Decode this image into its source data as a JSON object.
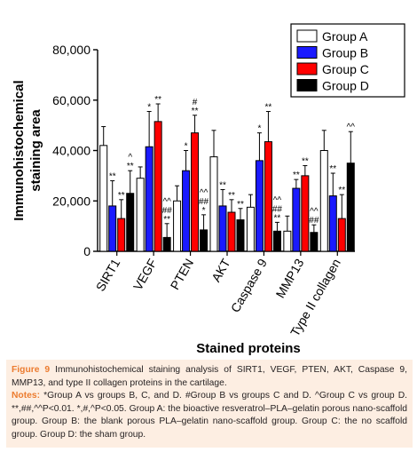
{
  "chart_data": {
    "type": "bar",
    "ylabel": "Immunohistochemical\nstaining area",
    "xlabel": "Stained proteins",
    "ylim": [
      0,
      80000
    ],
    "yticks": [
      "0",
      "20,000",
      "40,000",
      "60,000",
      "80,000"
    ],
    "ytick_values": [
      0,
      20000,
      40000,
      60000,
      80000
    ],
    "categories": [
      "SIRT1",
      "VEGF",
      "PTEN",
      "AKT",
      "Caspase 9",
      "MMP13",
      "Type II collagen"
    ],
    "series": [
      {
        "name": "Group A",
        "color": "#ffffff",
        "values": [
          42000,
          29000,
          20000,
          37500,
          17500,
          8000,
          40000
        ],
        "errors": [
          7500,
          4500,
          6000,
          10500,
          5000,
          6000,
          8000
        ]
      },
      {
        "name": "Group B",
        "color": "#1a1aff",
        "values": [
          18000,
          41500,
          32000,
          18000,
          36000,
          25000,
          22000
        ],
        "errors": [
          10000,
          14000,
          8000,
          6500,
          11000,
          3500,
          9000
        ]
      },
      {
        "name": "Group C",
        "color": "#ff0000",
        "values": [
          13000,
          51500,
          47000,
          15500,
          43500,
          30000,
          13000
        ],
        "errors": [
          7500,
          7000,
          7000,
          5000,
          12000,
          4000,
          9500
        ]
      },
      {
        "name": "Group D",
        "color": "#000000",
        "values": [
          23000,
          5500,
          8500,
          12500,
          8000,
          7500,
          35000
        ],
        "errors": [
          9000,
          5500,
          6000,
          4500,
          3500,
          3000,
          12500
        ]
      }
    ],
    "annotations": [
      [
        [],
        [
          "**"
        ],
        [
          "**"
        ],
        [
          "^",
          "**"
        ]
      ],
      [
        [],
        [
          "*"
        ],
        [
          "**"
        ],
        [
          "^^",
          "##",
          "**"
        ]
      ],
      [
        [],
        [
          "*"
        ],
        [
          "#",
          "**"
        ],
        [
          "^^",
          "##",
          "*"
        ]
      ],
      [
        [],
        [
          "**"
        ],
        [
          "**"
        ],
        [
          "**"
        ]
      ],
      [
        [],
        [
          "*"
        ],
        [
          "**"
        ],
        [
          "^^",
          "##",
          "**"
        ]
      ],
      [
        [],
        [
          "**"
        ],
        [
          "**"
        ],
        [
          "^^",
          "##"
        ]
      ],
      [
        [],
        [
          "**"
        ],
        [
          "**"
        ],
        [
          "^^"
        ]
      ]
    ],
    "legend_position": "top-right",
    "grid": false
  },
  "caption": {
    "figure_label": "Figure 9",
    "figure_text": "Immunohistochemical staining analysis of SIRT1, VEGF, PTEN, AKT, Caspase 9, MMP13, and type II collagen proteins in the cartilage.",
    "notes_label": "Notes:",
    "notes_text": "*Group A vs groups B, C, and D. #Group B vs groups C and D. ^Group C vs group D. **,##,^^P<0.01. *,#,^P<0.05. Group A: the bioactive resveratrol–PLA–gelatin porous nano-scaffold group. Group B: the blank porous PLA–gelatin nano-scaffold group. Group C: the no scaffold group. Group D: the sham group."
  }
}
